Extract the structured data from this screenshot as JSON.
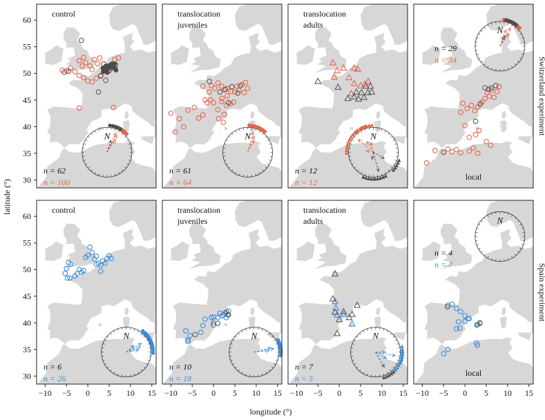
{
  "chart_data": {
    "type": "scatter",
    "xlabel": "longitude (°)",
    "ylabel": "latitude (°)",
    "xlim": [
      -12,
      16
    ],
    "ylim": [
      28.5,
      63
    ],
    "x_ticks": [
      -10,
      -5,
      0,
      5,
      10,
      15
    ],
    "y_ticks": [
      30,
      35,
      40,
      45,
      50,
      55,
      60
    ],
    "rows": [
      {
        "label": "Switzerland experiment",
        "color": "#e8654a"
      },
      {
        "label": "Spain experiment",
        "color": "#3a8ddb"
      }
    ],
    "compass_north": "N",
    "panels": [
      {
        "row": 0,
        "col": 0,
        "title": [
          "control"
        ],
        "n_black": "n = 62",
        "n_color": "n = 100",
        "compass": [
          4.5,
          35.2
        ],
        "open_color": [
          [
            -5,
            50.5
          ],
          [
            -4,
            51
          ],
          [
            -3,
            50.3
          ],
          [
            -2,
            49.6
          ],
          [
            -1,
            49.2
          ],
          [
            0,
            48.6
          ],
          [
            1,
            48.4
          ],
          [
            2,
            49.1
          ],
          [
            3,
            49.6
          ],
          [
            -6,
            50.6
          ],
          [
            -2,
            52.4
          ],
          [
            -1,
            53
          ],
          [
            -0.5,
            52
          ],
          [
            0.5,
            51.4
          ],
          [
            1.5,
            52.6
          ],
          [
            2.3,
            51.8
          ],
          [
            3.8,
            50.5
          ],
          [
            4.5,
            50.2
          ],
          [
            5.5,
            51.7
          ],
          [
            6.3,
            52.6
          ],
          [
            7.2,
            52.9
          ],
          [
            -2,
            43.5
          ],
          [
            6,
            43.6
          ],
          [
            -1.3,
            51.4
          ],
          [
            1,
            50.7
          ],
          [
            2.8,
            52.9
          ]
        ],
        "open_gray": [
          [
            -1.5,
            56.2
          ],
          [
            -5.5,
            50.2
          ],
          [
            -4.5,
            50.4
          ],
          [
            3,
            49.5
          ],
          [
            3.7,
            51.8
          ],
          [
            4.2,
            48.7
          ],
          [
            2.5,
            46.5
          ],
          [
            4.6,
            51.2
          ],
          [
            5,
            50.5
          ],
          [
            5.5,
            50.9
          ],
          [
            6,
            51.3
          ],
          [
            6.5,
            51.6
          ]
        ],
        "filled_gray": [
          [
            3.6,
            50.3
          ],
          [
            4,
            50.6
          ],
          [
            4.4,
            50.8
          ],
          [
            4.8,
            51
          ],
          [
            5.2,
            51.1
          ],
          [
            5.6,
            51.2
          ],
          [
            6,
            51.1
          ],
          [
            6.4,
            51
          ],
          [
            4.2,
            51.4
          ],
          [
            5,
            51.5
          ],
          [
            5.7,
            51.8
          ],
          [
            6.3,
            51.8
          ],
          [
            3.5,
            51
          ],
          [
            4.6,
            50.2
          ],
          [
            6.6,
            50.6
          ]
        ],
        "arrows_color": [
          [
            25,
            0.85
          ],
          [
            30,
            0.78
          ],
          [
            35,
            0.6
          ]
        ],
        "arrows_gray": [
          [
            18,
            0.5
          ]
        ]
      },
      {
        "row": 0,
        "col": 1,
        "title": [
          "translocation",
          "juveniles"
        ],
        "n_black": "n = 61",
        "n_color": "n = 64",
        "compass": [
          8,
          35.2
        ],
        "open_color": [
          [
            -10,
            42.5
          ],
          [
            -9,
            39
          ],
          [
            -8,
            41.5
          ],
          [
            -7,
            40
          ],
          [
            -6,
            43.1
          ],
          [
            -4.5,
            43.6
          ],
          [
            -3.5,
            41.6
          ],
          [
            -2.5,
            42.2
          ],
          [
            -1.5,
            44.5
          ],
          [
            -0.7,
            45
          ],
          [
            0,
            44.5
          ],
          [
            1,
            43.2
          ],
          [
            1.9,
            44.7
          ],
          [
            2.5,
            42.3
          ],
          [
            3.2,
            45.8
          ],
          [
            4,
            44.3
          ],
          [
            5,
            46.5
          ],
          [
            5.5,
            47.6
          ],
          [
            6,
            46.8
          ],
          [
            6.7,
            47.9
          ],
          [
            7.2,
            46.4
          ],
          [
            8,
            47.2
          ],
          [
            0.3,
            47.2
          ],
          [
            1,
            48.2
          ],
          [
            1.9,
            47.6
          ],
          [
            2.5,
            46.9
          ],
          [
            3.3,
            47.2
          ],
          [
            4.1,
            46.6
          ],
          [
            -2,
            45
          ],
          [
            -1,
            46.5
          ],
          [
            2,
            45.3
          ],
          [
            3,
            44
          ],
          [
            1.2,
            41.5
          ],
          [
            2.3,
            40.8
          ],
          [
            7.5,
            48.3
          ],
          [
            -0.5,
            47.7
          ],
          [
            -2.5,
            47.6
          ],
          [
            4.7,
            44.6
          ]
        ],
        "open_gray": [
          [
            -1,
            48.5
          ],
          [
            1.5,
            46.5
          ],
          [
            2.8,
            47
          ],
          [
            4.3,
            47.5
          ],
          [
            5.7,
            46.3
          ],
          [
            3.5,
            44.5
          ],
          [
            6.3,
            47.7
          ]
        ],
        "filled_gray": [],
        "arrows_color": [
          [
            15,
            0.85
          ],
          [
            22,
            0.7
          ],
          [
            28,
            0.55
          ]
        ],
        "arrows_gray": []
      },
      {
        "row": 0,
        "col": 2,
        "title": [
          "translocation",
          "adults"
        ],
        "n_black": "n = 12",
        "n_color": "n = 12",
        "compass": [
          8,
          35.2
        ],
        "tri_color": [
          [
            -1.5,
            52
          ],
          [
            -0.5,
            50.5
          ],
          [
            1,
            51
          ],
          [
            3.5,
            51
          ],
          [
            4.3,
            50.8
          ],
          [
            -1.2,
            49.3
          ],
          [
            2.3,
            49.2
          ],
          [
            5,
            47.7
          ],
          [
            6,
            48
          ],
          [
            6.8,
            48.5
          ],
          [
            3.5,
            48.1
          ],
          [
            2.8,
            46.2
          ]
        ],
        "tri_gray": [
          [
            -5,
            48.5
          ],
          [
            -0.3,
            47.4
          ],
          [
            4.5,
            45.2
          ],
          [
            5.2,
            46.4
          ],
          [
            5.8,
            45.5
          ],
          [
            6.2,
            47.6
          ],
          [
            6.7,
            46.4
          ],
          [
            7.3,
            47.6
          ],
          [
            7.6,
            46.5
          ],
          [
            3.5,
            45.6
          ],
          [
            2,
            45.3
          ],
          [
            4,
            46.5
          ]
        ],
        "arrows_color": [
          [
            -50,
            0.8
          ],
          [
            -30,
            0.5
          ],
          [
            -15,
            0.4
          ],
          [
            -80,
            0.3
          ]
        ],
        "arrows_gray": [
          [
            165,
            0.8
          ],
          [
            120,
            0.5
          ],
          [
            -170,
            0.3
          ]
        ]
      },
      {
        "row": 0,
        "col": 3,
        "title": [
          "local"
        ],
        "n_black": "n = 29",
        "n_color": "n = 34",
        "compass": [
          8.2,
          55.1
        ],
        "open_color": [
          [
            -9,
            33.2
          ],
          [
            -7,
            35.5
          ],
          [
            -4,
            35.8
          ],
          [
            -3,
            35.3
          ],
          [
            -2,
            35.7
          ],
          [
            -1,
            35.1
          ],
          [
            1,
            35.4
          ],
          [
            2,
            36
          ],
          [
            3,
            35
          ],
          [
            5,
            37.2
          ],
          [
            6,
            36.5
          ],
          [
            0,
            40.2
          ],
          [
            -1,
            42.7
          ],
          [
            -0.5,
            44.4
          ],
          [
            0.5,
            43.4
          ],
          [
            1.5,
            44
          ],
          [
            2.3,
            43
          ],
          [
            3,
            43.7
          ],
          [
            4,
            44.6
          ],
          [
            4.7,
            45.3
          ],
          [
            5.2,
            46.4
          ],
          [
            5.7,
            45.7
          ],
          [
            6.2,
            46.9
          ],
          [
            6.8,
            45.5
          ],
          [
            7.5,
            46.6
          ],
          [
            8,
            47.5
          ],
          [
            3.5,
            44.2
          ],
          [
            2.5,
            38.5
          ],
          [
            3.3,
            39.3
          ],
          [
            1,
            38
          ]
        ],
        "open_gray": [
          [
            -5,
            35.2
          ],
          [
            2.5,
            41
          ],
          [
            4.7,
            47.3
          ],
          [
            5.5,
            47
          ],
          [
            6.2,
            47.3
          ],
          [
            7.2,
            47.7
          ],
          [
            3.6,
            44.3
          ]
        ],
        "filled_gray": [],
        "arrows_color": [
          [
            20,
            0.7
          ],
          [
            30,
            0.85
          ],
          [
            35,
            0.6
          ]
        ],
        "arrows_gray": [
          [
            25,
            0.45
          ]
        ]
      },
      {
        "row": 1,
        "col": 0,
        "title": [
          "control"
        ],
        "n_black": "n = 6",
        "n_color": "n = 26",
        "compass": [
          9,
          34.5
        ],
        "open_color": [
          [
            -5,
            50.2
          ],
          [
            -4.5,
            51.3
          ],
          [
            -4,
            51
          ],
          [
            -3,
            48.8
          ],
          [
            -2.5,
            49.2
          ],
          [
            -1.5,
            49.5
          ],
          [
            -1,
            49.8
          ],
          [
            -0.5,
            52.3
          ],
          [
            0,
            52.7
          ],
          [
            0.5,
            54.2
          ],
          [
            1,
            53.2
          ],
          [
            1.5,
            52
          ],
          [
            2,
            52.5
          ],
          [
            2.5,
            51.2
          ],
          [
            3,
            50.8
          ],
          [
            3.5,
            51.6
          ],
          [
            4,
            51.2
          ],
          [
            4.5,
            52.1
          ],
          [
            5,
            52.6
          ],
          [
            3,
            49.7
          ],
          [
            2,
            51
          ],
          [
            -4.8,
            48.4
          ],
          [
            -4.2,
            48.4
          ],
          [
            -2,
            50
          ],
          [
            -5.3,
            49.3
          ],
          [
            5.5,
            52.1
          ]
        ],
        "open_gray": [],
        "filled_gray": [],
        "arrows_color": [
          [
            60,
            0.7
          ],
          [
            70,
            0.6
          ],
          [
            80,
            0.5
          ],
          [
            50,
            0.4
          ]
        ],
        "arrows_gray": []
      },
      {
        "row": 1,
        "col": 1,
        "title": [
          "translocation",
          "juveniles"
        ],
        "n_black": "n = 10",
        "n_color": "n = 18",
        "compass": [
          9.5,
          34.5
        ],
        "open_color": [
          [
            -6.5,
            38.5
          ],
          [
            -6,
            36.8
          ],
          [
            -3,
            38.2
          ],
          [
            -2,
            40.7
          ],
          [
            0,
            40
          ],
          [
            1,
            41
          ],
          [
            2,
            41.3
          ],
          [
            2.7,
            41.8
          ],
          [
            3.3,
            41.5
          ],
          [
            -0.5,
            41
          ],
          [
            1.5,
            41.8
          ],
          [
            -6,
            36.5
          ],
          [
            3.5,
            42.2
          ],
          [
            -5.5,
            37.6
          ],
          [
            0,
            41.1
          ],
          [
            2.3,
            41.5
          ],
          [
            3,
            41
          ],
          [
            -2.5,
            39.5
          ]
        ],
        "open_gray": [
          [
            -4.3,
            37.8
          ],
          [
            0,
            39.6
          ],
          [
            1,
            39.9
          ],
          [
            3,
            42
          ],
          [
            3.5,
            41.5
          ]
        ],
        "filled_gray": [],
        "arrows_color": [
          [
            80,
            0.8
          ],
          [
            75,
            0.7
          ],
          [
            85,
            0.6
          ]
        ],
        "arrows_gray": []
      },
      {
        "row": 1,
        "col": 2,
        "title": [
          "translocation",
          "adults"
        ],
        "n_black": "n = 7",
        "n_color": "n = 5",
        "compass": [
          8.5,
          34.5
        ],
        "tri_color": [
          [
            -1,
            44
          ],
          [
            -0.8,
            42.8
          ],
          [
            -0.5,
            41.5
          ],
          [
            1,
            41.6
          ],
          [
            3,
            39.8
          ]
        ],
        "tri_gray": [
          [
            -1,
            49.2
          ],
          [
            -1.5,
            44.5
          ],
          [
            -1,
            42
          ],
          [
            0,
            40.6
          ],
          [
            -0.5,
            38
          ],
          [
            1,
            42.1
          ],
          [
            3,
            41.6
          ],
          [
            4.2,
            43.3
          ],
          [
            2.3,
            41
          ]
        ],
        "arrows_color": [
          [
            100,
            0.8
          ],
          [
            120,
            0.5
          ],
          [
            90,
            0.4
          ]
        ],
        "arrows_gray": [
          [
            150,
            0.7
          ]
        ]
      },
      {
        "row": 1,
        "col": 3,
        "title": [
          "local"
        ],
        "n_black": "n = 4",
        "n_color": "n = 7",
        "compass": [
          8.2,
          56.2
        ],
        "open_color": [
          [
            -5,
            34.2
          ],
          [
            -4,
            35
          ],
          [
            -4,
            43.3
          ],
          [
            -3,
            43.5
          ],
          [
            -2,
            42.7
          ],
          [
            -1,
            42.1
          ],
          [
            0,
            40.3
          ],
          [
            0.7,
            40.8
          ],
          [
            1,
            40.8
          ],
          [
            -1.5,
            40.2
          ],
          [
            -2,
            38.9
          ],
          [
            3,
            39.7
          ],
          [
            3.5,
            39.9
          ],
          [
            2.7,
            36.2
          ],
          [
            2.9,
            35.8
          ],
          [
            -1.2,
            39
          ],
          [
            0,
            41.3
          ]
        ],
        "open_gray": [
          [
            -4.1,
            43
          ],
          [
            3.5,
            40
          ],
          [
            2.8,
            39.6
          ]
        ],
        "filled_gray": [],
        "arrows_color": [],
        "arrows_gray": []
      }
    ]
  }
}
